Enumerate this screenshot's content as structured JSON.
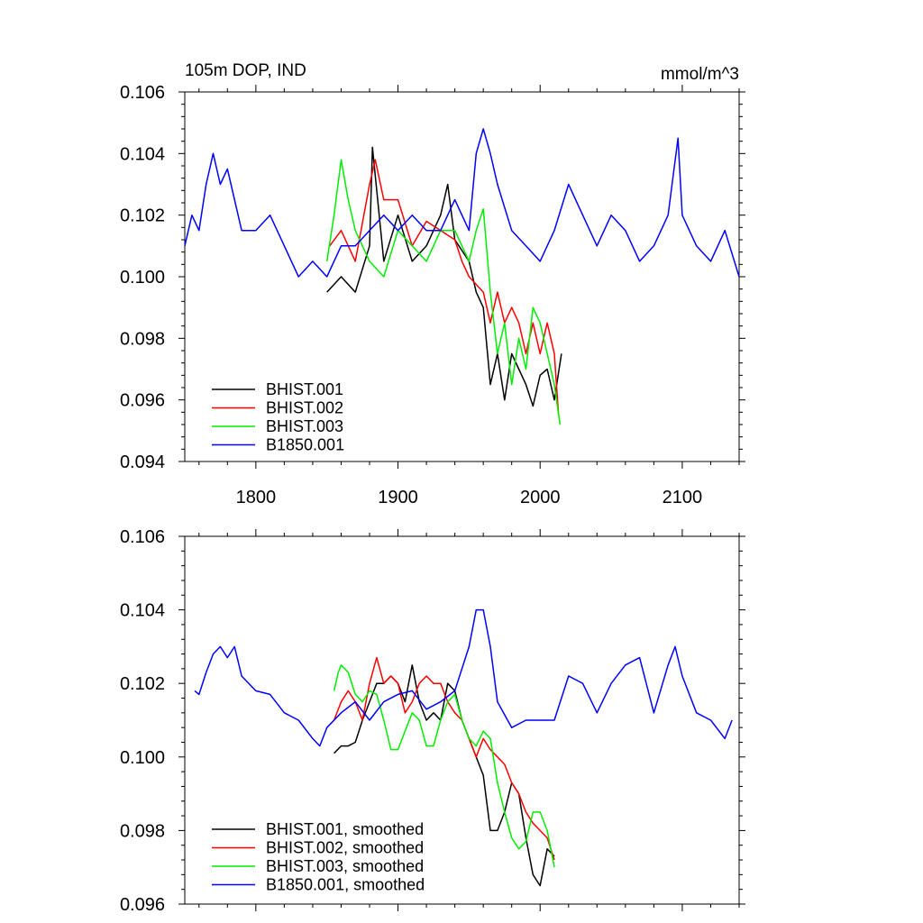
{
  "chart_data": [
    {
      "type": "line",
      "title": "105m DOP, IND",
      "units": "mmol/m^3",
      "xlim": [
        1750,
        2140
      ],
      "ylim": [
        0.094,
        0.106
      ],
      "xticks": [
        "1800",
        "1900",
        "2000",
        "2100"
      ],
      "yticks": [
        "0.094",
        "0.096",
        "0.098",
        "0.100",
        "0.102",
        "0.104",
        "0.106"
      ],
      "legend_position": "bottom-left",
      "series": [
        {
          "name": "BHIST.001",
          "color": "#000000",
          "x": [
            1850,
            1860,
            1870,
            1880,
            1882,
            1890,
            1900,
            1910,
            1920,
            1930,
            1935,
            1940,
            1950,
            1955,
            1960,
            1965,
            1970,
            1975,
            1980,
            1985,
            1990,
            1995,
            2000,
            2005,
            2010,
            2015
          ],
          "y": [
            0.0995,
            0.1,
            0.0995,
            0.101,
            0.1042,
            0.1005,
            0.102,
            0.1005,
            0.101,
            0.102,
            0.103,
            0.1012,
            0.1005,
            0.0995,
            0.099,
            0.0965,
            0.0975,
            0.096,
            0.0975,
            0.097,
            0.0965,
            0.0958,
            0.0968,
            0.097,
            0.096,
            0.0975
          ]
        },
        {
          "name": "BHIST.002",
          "color": "#ff0000",
          "x": [
            1852,
            1860,
            1870,
            1880,
            1884,
            1890,
            1900,
            1910,
            1920,
            1930,
            1940,
            1945,
            1950,
            1960,
            1965,
            1970,
            1975,
            1980,
            1985,
            1990,
            1995,
            2000,
            2005,
            2010,
            2013
          ],
          "y": [
            0.101,
            0.1015,
            0.1005,
            0.103,
            0.1038,
            0.1025,
            0.1025,
            0.101,
            0.1018,
            0.1015,
            0.1012,
            0.1005,
            0.1,
            0.0995,
            0.0985,
            0.0995,
            0.0985,
            0.099,
            0.0985,
            0.0975,
            0.0985,
            0.0975,
            0.0985,
            0.0975,
            0.0955
          ]
        },
        {
          "name": "BHIST.003",
          "color": "#00ee00",
          "x": [
            1850,
            1855,
            1860,
            1865,
            1870,
            1880,
            1890,
            1900,
            1910,
            1920,
            1930,
            1940,
            1950,
            1955,
            1960,
            1965,
            1970,
            1975,
            1980,
            1985,
            1990,
            1995,
            2000,
            2005,
            2010,
            2014
          ],
          "y": [
            0.1005,
            0.102,
            0.1038,
            0.1025,
            0.1015,
            0.1005,
            0.1,
            0.1015,
            0.101,
            0.1005,
            0.1015,
            0.1015,
            0.1005,
            0.1015,
            0.1022,
            0.0995,
            0.0975,
            0.0985,
            0.0965,
            0.098,
            0.097,
            0.099,
            0.0985,
            0.0975,
            0.0965,
            0.0952
          ]
        },
        {
          "name": "B1850.001",
          "color": "#0000ff",
          "x": [
            1750,
            1755,
            1760,
            1765,
            1770,
            1775,
            1780,
            1790,
            1800,
            1810,
            1820,
            1830,
            1840,
            1850,
            1860,
            1870,
            1880,
            1890,
            1900,
            1910,
            1920,
            1930,
            1940,
            1950,
            1955,
            1960,
            1965,
            1970,
            1980,
            1990,
            2000,
            2010,
            2020,
            2030,
            2040,
            2050,
            2060,
            2070,
            2080,
            2090,
            2097,
            2100,
            2110,
            2120,
            2130,
            2140
          ],
          "y": [
            0.101,
            0.102,
            0.1015,
            0.103,
            0.104,
            0.103,
            0.1035,
            0.1015,
            0.1015,
            0.102,
            0.101,
            0.1,
            0.1005,
            0.1,
            0.101,
            0.101,
            0.1015,
            0.102,
            0.1015,
            0.102,
            0.1015,
            0.1015,
            0.1025,
            0.1015,
            0.104,
            0.1048,
            0.104,
            0.103,
            0.1015,
            0.101,
            0.1005,
            0.1015,
            0.103,
            0.102,
            0.101,
            0.102,
            0.1015,
            0.1005,
            0.101,
            0.102,
            0.1045,
            0.102,
            0.101,
            0.1005,
            0.1015,
            0.1
          ]
        }
      ]
    },
    {
      "type": "line",
      "xlim": [
        1750,
        2140
      ],
      "ylim": [
        0.096,
        0.106
      ],
      "yticks": [
        "0.096",
        "0.098",
        "0.100",
        "0.102",
        "0.104",
        "0.106"
      ],
      "legend_position": "bottom-left",
      "series": [
        {
          "name": "BHIST.001, smoothed",
          "color": "#000000",
          "x": [
            1855,
            1860,
            1865,
            1870,
            1875,
            1880,
            1885,
            1890,
            1895,
            1900,
            1905,
            1910,
            1915,
            1920,
            1925,
            1930,
            1935,
            1940,
            1945,
            1950,
            1955,
            1960,
            1965,
            1970,
            1975,
            1980,
            1985,
            1990,
            1995,
            2000,
            2005,
            2010
          ],
          "y": [
            0.1001,
            0.1003,
            0.1003,
            0.1004,
            0.101,
            0.1015,
            0.102,
            0.102,
            0.1022,
            0.102,
            0.1015,
            0.1025,
            0.1015,
            0.101,
            0.1012,
            0.101,
            0.102,
            0.1018,
            0.101,
            0.1005,
            0.1,
            0.0995,
            0.098,
            0.098,
            0.0985,
            0.0993,
            0.099,
            0.0978,
            0.0968,
            0.0965,
            0.0975,
            0.0973
          ]
        },
        {
          "name": "BHIST.002, smoothed",
          "color": "#ff0000",
          "x": [
            1855,
            1860,
            1865,
            1870,
            1875,
            1880,
            1885,
            1890,
            1895,
            1900,
            1905,
            1910,
            1915,
            1920,
            1925,
            1930,
            1935,
            1940,
            1945,
            1950,
            1955,
            1960,
            1965,
            1970,
            1975,
            1980,
            1985,
            1990,
            1995,
            2000,
            2005,
            2010
          ],
          "y": [
            0.101,
            0.1015,
            0.1018,
            0.1015,
            0.101,
            0.102,
            0.1027,
            0.102,
            0.1022,
            0.102,
            0.1012,
            0.1015,
            0.102,
            0.1022,
            0.102,
            0.102,
            0.1015,
            0.1012,
            0.101,
            0.1005,
            0.1,
            0.1005,
            0.1002,
            0.1,
            0.0998,
            0.0993,
            0.099,
            0.0985,
            0.0982,
            0.098,
            0.0978,
            0.0972
          ]
        },
        {
          "name": "BHIST.003, smoothed",
          "color": "#00ee00",
          "x": [
            1855,
            1858,
            1860,
            1865,
            1870,
            1875,
            1880,
            1885,
            1890,
            1895,
            1900,
            1905,
            1910,
            1915,
            1920,
            1925,
            1930,
            1935,
            1940,
            1945,
            1950,
            1955,
            1960,
            1965,
            1970,
            1975,
            1980,
            1985,
            1990,
            1995,
            2000,
            2005,
            2010
          ],
          "y": [
            0.1018,
            0.1023,
            0.1025,
            0.1023,
            0.1017,
            0.1015,
            0.1018,
            0.1017,
            0.101,
            0.1002,
            0.1002,
            0.1007,
            0.1012,
            0.101,
            0.1003,
            0.1003,
            0.101,
            0.1015,
            0.1017,
            0.101,
            0.1005,
            0.1003,
            0.1007,
            0.1005,
            0.0993,
            0.0985,
            0.0978,
            0.0975,
            0.0977,
            0.0985,
            0.0985,
            0.098,
            0.097
          ]
        },
        {
          "name": "B1850.001, smoothed",
          "color": "#0000ff",
          "x": [
            1757,
            1760,
            1765,
            1770,
            1775,
            1780,
            1785,
            1790,
            1800,
            1810,
            1820,
            1830,
            1840,
            1845,
            1850,
            1860,
            1870,
            1880,
            1890,
            1900,
            1910,
            1920,
            1930,
            1940,
            1950,
            1955,
            1960,
            1965,
            1970,
            1980,
            1990,
            2000,
            2010,
            2020,
            2030,
            2040,
            2050,
            2060,
            2070,
            2080,
            2090,
            2095,
            2100,
            2110,
            2120,
            2130,
            2135
          ],
          "y": [
            0.1018,
            0.1017,
            0.1023,
            0.1028,
            0.103,
            0.1027,
            0.103,
            0.1022,
            0.1018,
            0.1017,
            0.1012,
            0.101,
            0.1005,
            0.1003,
            0.1008,
            0.1012,
            0.1015,
            0.101,
            0.1015,
            0.1017,
            0.1018,
            0.1013,
            0.1015,
            0.1018,
            0.103,
            0.104,
            0.104,
            0.103,
            0.1015,
            0.1008,
            0.101,
            0.101,
            0.101,
            0.1022,
            0.102,
            0.1012,
            0.102,
            0.1025,
            0.1027,
            0.1012,
            0.1025,
            0.103,
            0.1022,
            0.1012,
            0.101,
            0.1005,
            0.101
          ]
        }
      ]
    }
  ]
}
